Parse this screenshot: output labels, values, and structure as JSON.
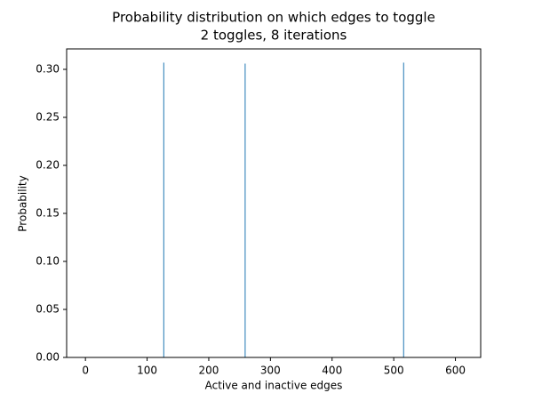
{
  "chart_data": {
    "type": "bar",
    "title": "Probability distribution on which edges to toggle",
    "subtitle": "2 toggles, 8 iterations",
    "xlabel": "Active and inactive edges",
    "ylabel": "Probability",
    "x": [
      127,
      259,
      516
    ],
    "values": [
      0.307,
      0.306,
      0.307
    ],
    "color": "#1f77b4",
    "xlim": [
      -30.5,
      641
    ],
    "ylim": [
      0,
      0.3213
    ],
    "xticks": [
      0,
      100,
      200,
      300,
      400,
      500,
      600
    ],
    "yticks": [
      {
        "value": 0,
        "label": "0.00"
      },
      {
        "value": 0.05,
        "label": "0.05"
      },
      {
        "value": 0.1,
        "label": "0.10"
      },
      {
        "value": 0.15,
        "label": "0.15"
      },
      {
        "value": 0.2,
        "label": "0.20"
      },
      {
        "value": 0.25,
        "label": "0.25"
      },
      {
        "value": 0.3,
        "label": "0.30"
      }
    ],
    "grid": false
  }
}
